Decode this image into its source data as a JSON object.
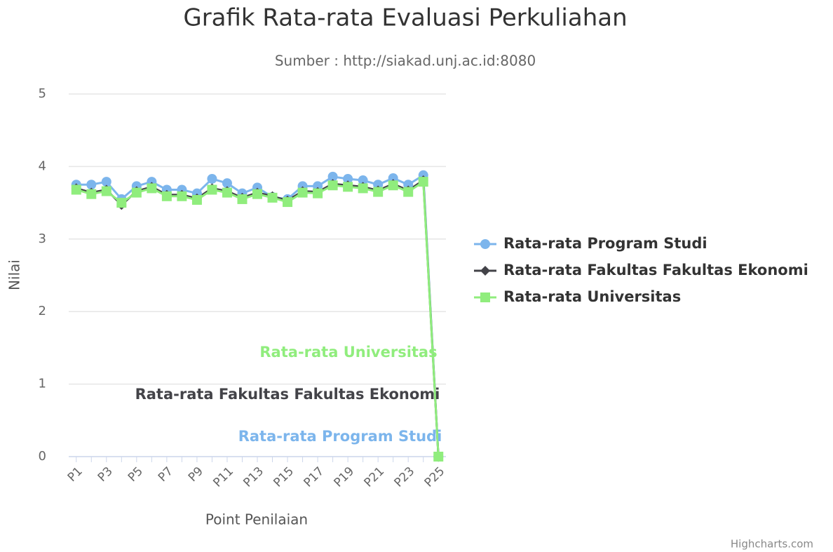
{
  "chart_data": {
    "type": "line",
    "title": "Grafik Rata-rata Evaluasi Perkuliahan",
    "subtitle": "Sumber : http://siakad.unj.ac.id:8080",
    "x_label": "Point Penilaian",
    "y_label": "Nilai",
    "credits": "Highcharts.com",
    "categories": [
      "P1",
      null,
      "P3",
      null,
      "P5",
      null,
      "P7",
      null,
      "P9",
      null,
      "P11",
      null,
      "P13",
      null,
      "P15",
      null,
      "P17",
      null,
      "P19",
      null,
      "P21",
      null,
      "P23",
      null,
      "P25"
    ],
    "series": [
      {
        "name": "Rata-rata Program Studi",
        "color": "#7cb5ec",
        "marker": "circle",
        "values": [
          3.75,
          3.75,
          3.79,
          3.55,
          3.73,
          3.79,
          3.68,
          3.68,
          3.63,
          3.83,
          3.77,
          3.63,
          3.71,
          3.58,
          3.55,
          3.73,
          3.73,
          3.86,
          3.83,
          3.81,
          3.75,
          3.84,
          3.75,
          3.88,
          0
        ]
      },
      {
        "name": "Rata-rata Fakultas Fakultas Ekonomi",
        "color": "#434348",
        "marker": "diamond",
        "values": [
          3.7,
          3.64,
          3.68,
          3.47,
          3.66,
          3.72,
          3.61,
          3.61,
          3.56,
          3.7,
          3.66,
          3.57,
          3.64,
          3.59,
          3.53,
          3.66,
          3.65,
          3.76,
          3.74,
          3.72,
          3.67,
          3.76,
          3.67,
          3.81,
          0
        ]
      },
      {
        "name": "Rata-rata Universitas",
        "color": "#90ed7d",
        "marker": "square",
        "values": [
          3.68,
          3.62,
          3.66,
          3.5,
          3.64,
          3.7,
          3.59,
          3.59,
          3.54,
          3.68,
          3.64,
          3.55,
          3.62,
          3.57,
          3.51,
          3.64,
          3.63,
          3.74,
          3.72,
          3.7,
          3.65,
          3.74,
          3.65,
          3.79,
          0
        ]
      }
    ],
    "ylim": [
      0,
      5
    ],
    "yticks": [
      0,
      1,
      2,
      3,
      4,
      5
    ],
    "grid": true,
    "legend": "right"
  }
}
